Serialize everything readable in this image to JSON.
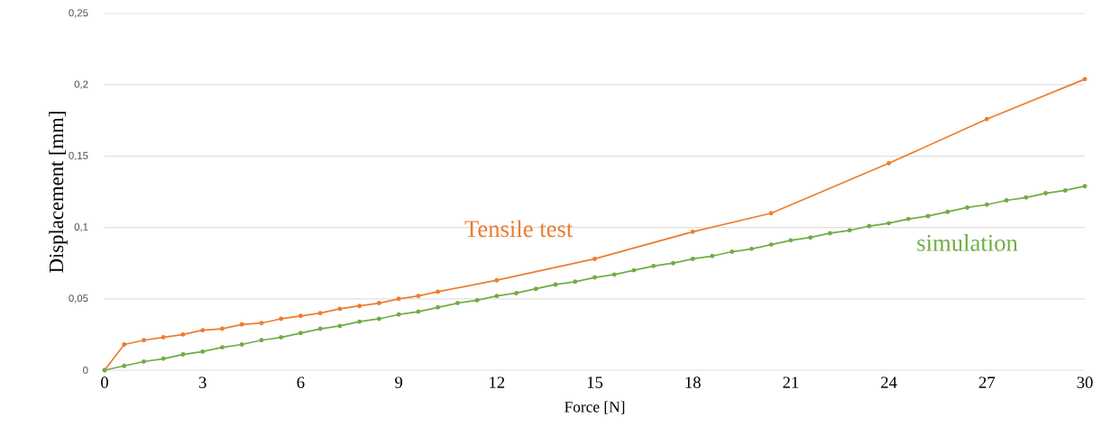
{
  "chart_data": {
    "type": "line",
    "xlabel": "Force [N]",
    "ylabel": "Displacement [mm]",
    "xlim": [
      0,
      30
    ],
    "xticks": [
      0,
      3,
      6,
      9,
      12,
      15,
      18,
      21,
      24,
      27,
      30
    ],
    "ylim": [
      0,
      0.25
    ],
    "yticks": [
      0,
      {
        "value": 0.05,
        "label": "0,05"
      },
      {
        "value": 0.1,
        "label": "0,1"
      },
      {
        "value": 0.15,
        "label": "0,15"
      },
      {
        "value": 0.2,
        "label": "0,2"
      },
      {
        "value": 0.25,
        "label": "0,25"
      }
    ],
    "grid": "y",
    "legend": false,
    "marker": "circle",
    "line_style": "solid",
    "series": [
      {
        "name": "Tensile test",
        "color": "#ed7d31",
        "x": [
          0,
          0.6,
          1.2,
          1.8,
          2.4,
          3.0,
          3.6,
          4.2,
          4.8,
          5.4,
          6.0,
          6.6,
          7.2,
          7.8,
          8.4,
          9.0,
          9.6,
          10.2,
          12,
          15,
          18,
          20.4,
          24,
          27,
          30
        ],
        "values": [
          0,
          0.018,
          0.021,
          0.023,
          0.025,
          0.028,
          0.029,
          0.032,
          0.033,
          0.036,
          0.038,
          0.04,
          0.043,
          0.045,
          0.047,
          0.05,
          0.052,
          0.055,
          0.063,
          0.078,
          0.097,
          0.11,
          0.145,
          0.176,
          0.204
        ]
      },
      {
        "name": "simulation",
        "color": "#70ad47",
        "x": [
          0,
          0.6,
          1.2,
          1.8,
          2.4,
          3.0,
          3.6,
          4.2,
          4.8,
          5.4,
          6.0,
          6.6,
          7.2,
          7.8,
          8.4,
          9.0,
          9.6,
          10.2,
          10.8,
          11.4,
          12.0,
          12.6,
          13.2,
          13.8,
          14.4,
          15.0,
          15.6,
          16.2,
          16.8,
          17.4,
          18.0,
          18.6,
          19.2,
          19.8,
          20.4,
          21.0,
          21.6,
          22.2,
          22.8,
          23.4,
          24.0,
          24.6,
          25.2,
          25.8,
          26.4,
          27.0,
          27.6,
          28.2,
          28.8,
          29.4,
          30.0
        ],
        "values": [
          0,
          0.003,
          0.006,
          0.008,
          0.011,
          0.013,
          0.016,
          0.018,
          0.021,
          0.023,
          0.026,
          0.029,
          0.031,
          0.034,
          0.036,
          0.039,
          0.041,
          0.044,
          0.047,
          0.049,
          0.052,
          0.054,
          0.057,
          0.06,
          0.062,
          0.065,
          0.067,
          0.07,
          0.073,
          0.075,
          0.078,
          0.08,
          0.083,
          0.085,
          0.088,
          0.091,
          0.093,
          0.096,
          0.098,
          0.101,
          0.103,
          0.106,
          0.108,
          0.111,
          0.114,
          0.116,
          0.119,
          0.121,
          0.124,
          0.126,
          0.129
        ]
      }
    ]
  }
}
